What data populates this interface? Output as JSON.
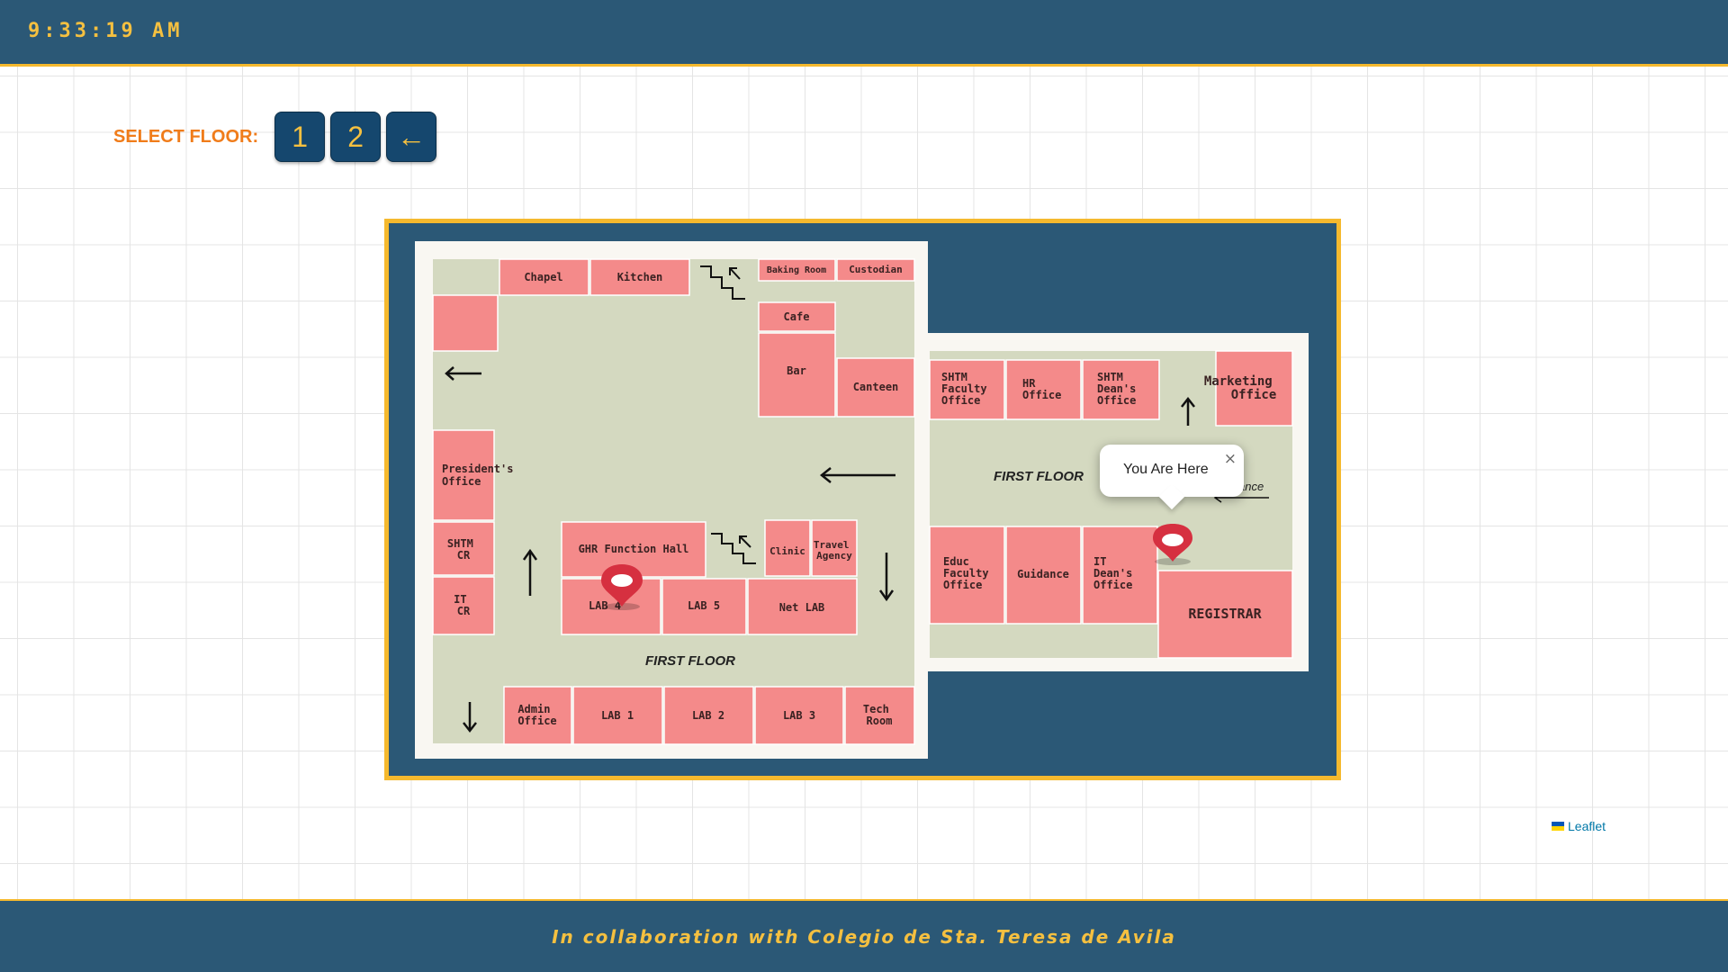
{
  "header": {
    "time": "9:33:19 AM"
  },
  "floor_select": {
    "label": "SELECT FLOOR:",
    "buttons": [
      "1",
      "2",
      "←"
    ]
  },
  "map": {
    "left_rooms": {
      "chapel": "Chapel",
      "kitchen": "Kitchen",
      "baking_room": "Baking Room",
      "custodian": "Custodian",
      "cafe": "Cafe",
      "bar": "Bar",
      "canteen": "Canteen",
      "presidents_office": [
        "President's",
        "Office"
      ],
      "shtm_cr": [
        "SHTM",
        "CR"
      ],
      "it_cr": [
        "IT",
        "CR"
      ],
      "ghr_function_hall": "GHR Function Hall",
      "clinic": "Clinic",
      "travel_agency": [
        "Travel",
        "Agency"
      ],
      "lab4": "LAB 4",
      "lab5": "LAB 5",
      "net_lab": "Net LAB",
      "admin_office": [
        "Admin",
        "Office"
      ],
      "lab1": "LAB 1",
      "lab2": "LAB 2",
      "lab3": "LAB 3",
      "tech_room": [
        "Tech",
        "Room"
      ],
      "floor_label": "FIRST FLOOR"
    },
    "right_rooms": {
      "shtm_faculty": [
        "SHTM",
        "Faculty",
        "Office"
      ],
      "hr_office": [
        "HR",
        "Office"
      ],
      "shtm_dean": [
        "SHTM",
        "Dean's",
        "Office"
      ],
      "marketing": [
        "Marketing",
        "Office"
      ],
      "educ_faculty": [
        "Educ",
        "Faculty",
        "Office"
      ],
      "guidance": "Guidance",
      "it_dean": [
        "IT",
        "Dean's",
        "Office"
      ],
      "registrar": "REGISTRAR",
      "entrance": "ance",
      "floor_label": "FIRST FLOOR"
    },
    "popup": {
      "text": "You Are Here",
      "close": "×"
    },
    "marker_color": "#d63040"
  },
  "attribution": {
    "text": "Leaflet"
  },
  "footer": {
    "text": "In collaboration with Colegio de Sta. Teresa de Avila"
  },
  "colors": {
    "header_bg": "#2b5876",
    "accent": "#f5b92e",
    "room": "#f48a8a",
    "floor_bg": "#d4d9c0"
  }
}
